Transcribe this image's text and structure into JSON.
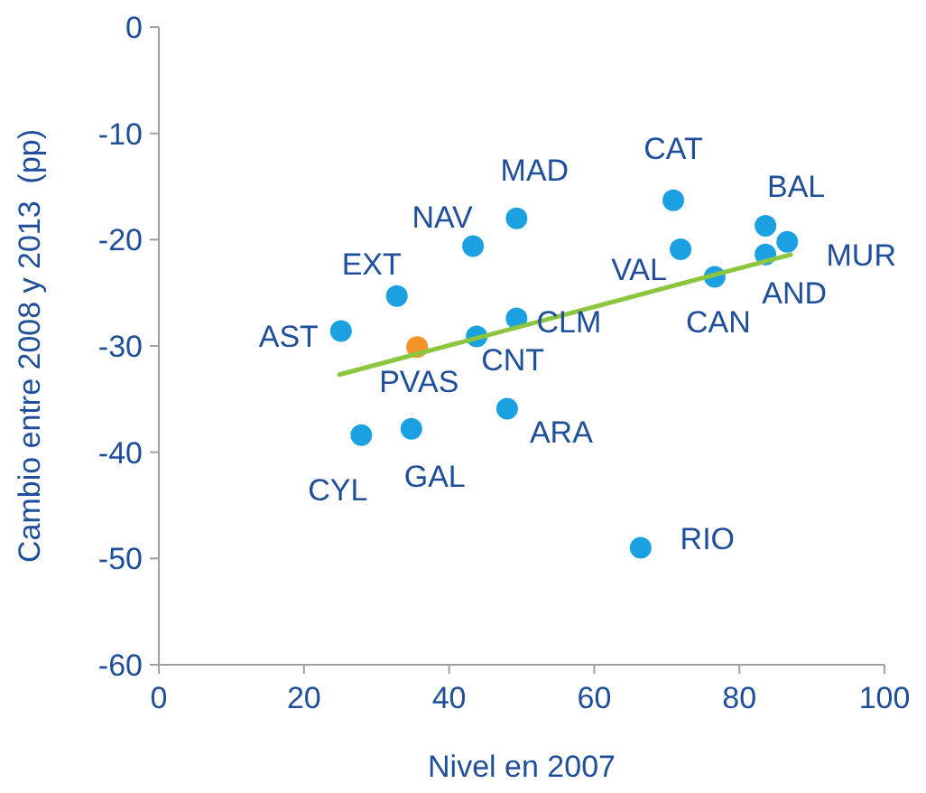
{
  "chart_data": {
    "type": "scatter",
    "xlabel": "Nivel en 2007",
    "ylabel": "Cambio entre 2008 y 2013  (pp)",
    "xlim": [
      0,
      100
    ],
    "xticks": [
      0,
      20,
      40,
      60,
      80,
      100
    ],
    "ylim": [
      -60,
      0
    ],
    "yticks": [
      -60,
      -50,
      -40,
      -30,
      -20,
      -10,
      0
    ],
    "marker": "circle",
    "series": [
      {
        "color": "#1ba1e2",
        "x": [
          25.1,
          27.9,
          32.8,
          34.8,
          43.3,
          43.8,
          48.0,
          49.3,
          49.3,
          66.4,
          70.9,
          71.9,
          76.6,
          83.6,
          83.6,
          86.6
        ],
        "values": [
          -28.6,
          -38.4,
          -25.3,
          -37.8,
          -20.6,
          -29.1,
          -35.9,
          -18.0,
          -27.4,
          -49.0,
          -16.3,
          -20.9,
          -23.5,
          -18.7,
          -21.4,
          -20.2
        ]
      },
      {
        "color": "#f39229",
        "x": [
          35.6
        ],
        "values": [
          -30.1
        ]
      },
      {
        "type": "line",
        "marker": "none",
        "color": "#8cc63f",
        "x": [
          24.9,
          87.1
        ],
        "values": [
          -32.7,
          -21.4
        ]
      }
    ],
    "annotations": [
      {
        "text": "AST",
        "x": 25.1,
        "y": -28.6
      },
      {
        "text": "CYL",
        "x": 27.9,
        "y": -38.4
      },
      {
        "text": "EXT",
        "x": 32.8,
        "y": -25.3
      },
      {
        "text": "GAL",
        "x": 34.8,
        "y": -37.8
      },
      {
        "text": "NAV",
        "x": 43.3,
        "y": -20.6
      },
      {
        "text": "CNT",
        "x": 43.8,
        "y": -29.1
      },
      {
        "text": "ARA",
        "x": 48.0,
        "y": -35.9
      },
      {
        "text": "MAD",
        "x": 49.3,
        "y": -18.0
      },
      {
        "text": "CLM",
        "x": 49.3,
        "y": -27.4
      },
      {
        "text": "RIO",
        "x": 66.4,
        "y": -49.0
      },
      {
        "text": "CAT",
        "x": 70.9,
        "y": -16.3
      },
      {
        "text": "VAL",
        "x": 71.9,
        "y": -20.9
      },
      {
        "text": "CAN",
        "x": 76.6,
        "y": -23.5
      },
      {
        "text": "BAL",
        "x": 83.6,
        "y": -18.7
      },
      {
        "text": "AND",
        "x": 83.6,
        "y": -21.4
      },
      {
        "text": "MUR",
        "x": 86.6,
        "y": -20.2
      },
      {
        "text": "PVAS",
        "x": 35.6,
        "y": -30.1
      }
    ]
  }
}
